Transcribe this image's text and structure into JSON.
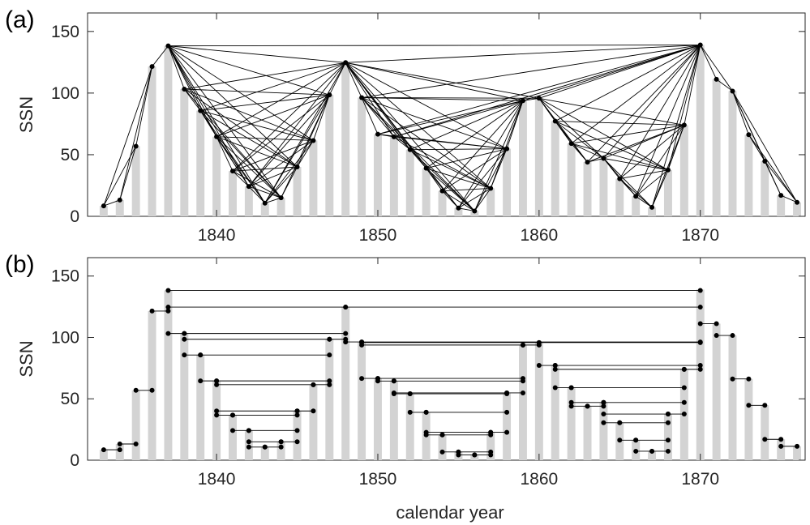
{
  "chart_data": [
    {
      "type": "bar",
      "panel_label": "(a)",
      "ylabel": "SSN",
      "xlabel": "",
      "xticks": [
        1840,
        1850,
        1860,
        1870
      ],
      "yticks": [
        0,
        50,
        100,
        150
      ],
      "xlim": [
        1832,
        1876.5
      ],
      "ylim": [
        0,
        165
      ],
      "bar_color": "#d3d3d3",
      "link_color": "#000000",
      "link_type": "natural visibility graph",
      "years": [
        1833,
        1834,
        1835,
        1836,
        1837,
        1838,
        1839,
        1840,
        1841,
        1842,
        1843,
        1844,
        1845,
        1846,
        1847,
        1848,
        1849,
        1850,
        1851,
        1852,
        1853,
        1854,
        1855,
        1856,
        1857,
        1858,
        1859,
        1860,
        1861,
        1862,
        1863,
        1864,
        1865,
        1866,
        1867,
        1868,
        1869,
        1870,
        1871,
        1872,
        1873,
        1874,
        1875,
        1876
      ],
      "values": [
        8.5,
        13.2,
        56.9,
        121.5,
        138.3,
        103.2,
        85.7,
        64.6,
        36.7,
        24.2,
        10.7,
        15.0,
        40.1,
        61.5,
        98.5,
        124.7,
        96.3,
        66.6,
        64.5,
        54.1,
        39.0,
        20.6,
        6.7,
        4.3,
        22.7,
        54.8,
        93.8,
        95.8,
        77.2,
        59.1,
        44.0,
        47.0,
        30.5,
        16.3,
        7.3,
        37.6,
        74.0,
        139.0,
        111.2,
        101.6,
        66.2,
        44.7,
        17.0,
        11.3
      ]
    },
    {
      "type": "bar",
      "panel_label": "(b)",
      "ylabel": "SSN",
      "xlabel": "calendar year",
      "xticks": [
        1840,
        1850,
        1860,
        1870
      ],
      "yticks": [
        0,
        50,
        100,
        150
      ],
      "xlim": [
        1832,
        1876.5
      ],
      "ylim": [
        0,
        165
      ],
      "bar_color": "#d3d3d3",
      "link_color": "#000000",
      "link_type": "horizontal visibility graph",
      "years": [
        1833,
        1834,
        1835,
        1836,
        1837,
        1838,
        1839,
        1840,
        1841,
        1842,
        1843,
        1844,
        1845,
        1846,
        1847,
        1848,
        1849,
        1850,
        1851,
        1852,
        1853,
        1854,
        1855,
        1856,
        1857,
        1858,
        1859,
        1860,
        1861,
        1862,
        1863,
        1864,
        1865,
        1866,
        1867,
        1868,
        1869,
        1870,
        1871,
        1872,
        1873,
        1874,
        1875,
        1876
      ],
      "values": [
        8.5,
        13.2,
        56.9,
        121.5,
        138.3,
        103.2,
        85.7,
        64.6,
        36.7,
        24.2,
        10.7,
        15.0,
        40.1,
        61.5,
        98.5,
        124.7,
        96.3,
        66.6,
        64.5,
        54.1,
        39.0,
        20.6,
        6.7,
        4.3,
        22.7,
        54.8,
        93.8,
        95.8,
        77.2,
        59.1,
        44.0,
        47.0,
        30.5,
        16.3,
        7.3,
        37.6,
        74.0,
        139.0,
        111.2,
        101.6,
        66.2,
        44.7,
        17.0,
        11.3
      ]
    }
  ]
}
